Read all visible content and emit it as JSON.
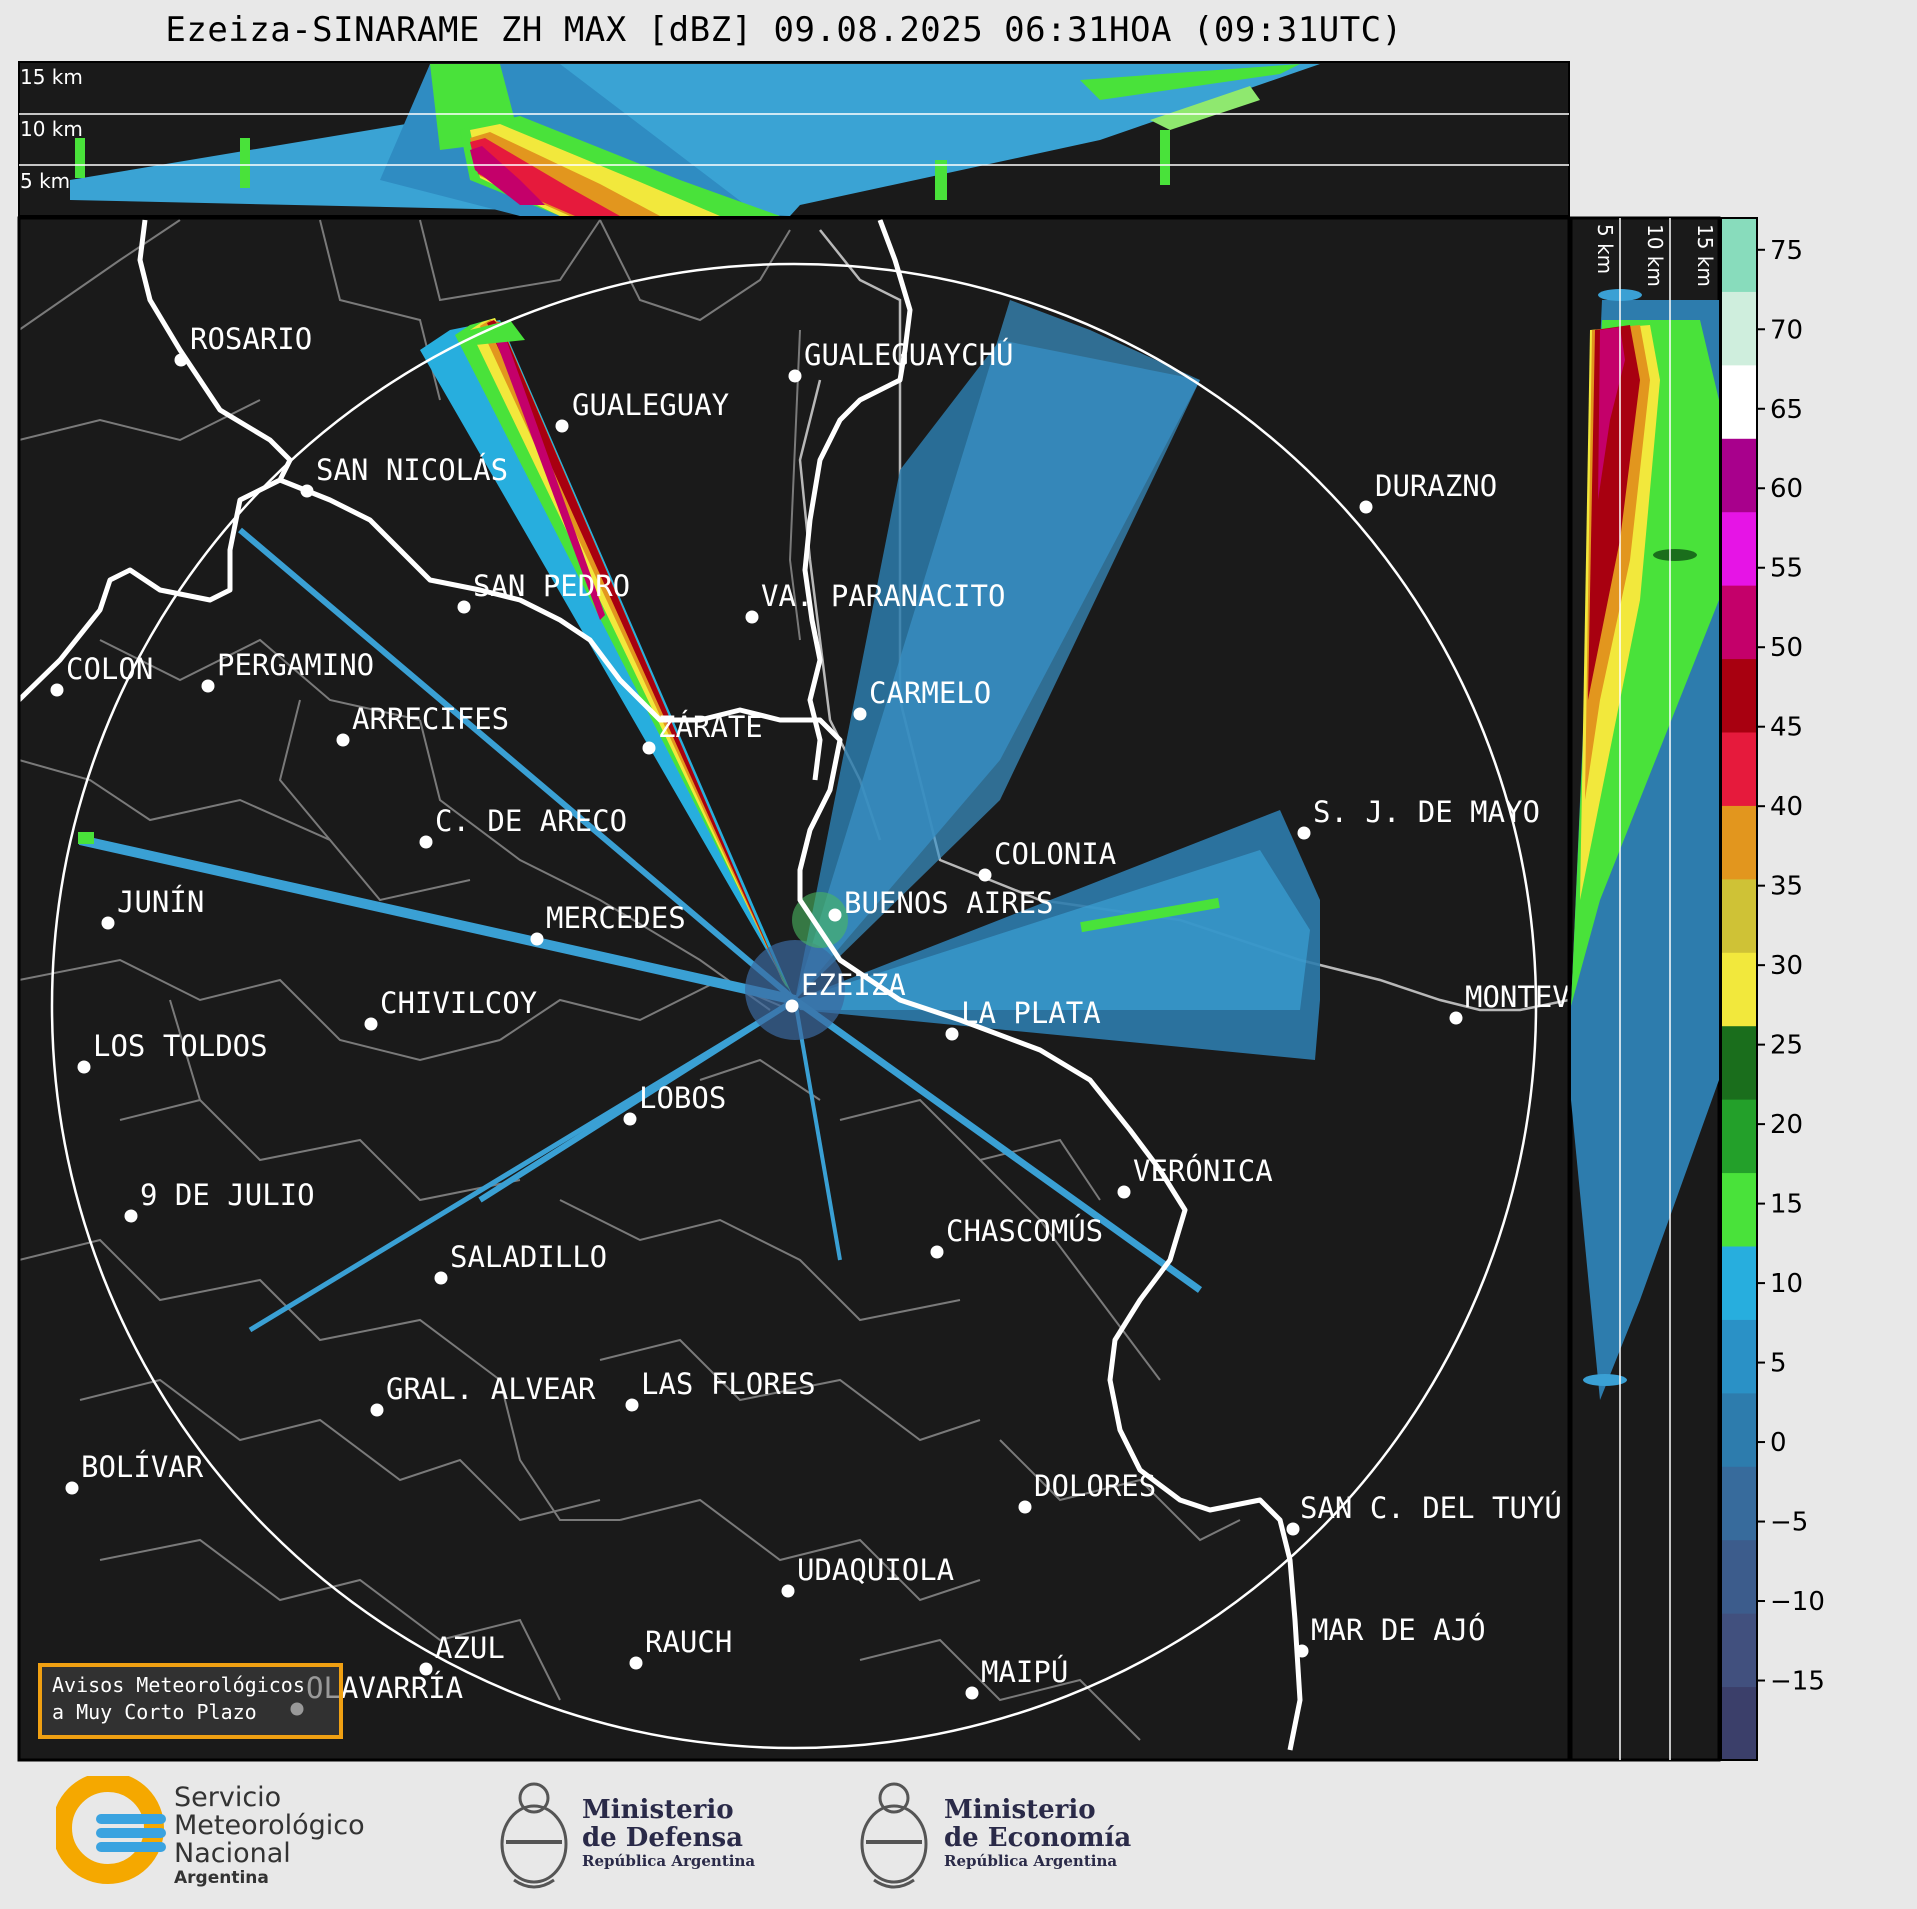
{
  "title": "Ezeiza-SINARAME ZH MAX [dBZ] 09.08.2025 06:31HOA (09:31UTC)",
  "top_panel": {
    "height_labels": [
      "15 km",
      "10 km",
      "5 km"
    ]
  },
  "side_panel": {
    "height_labels": [
      "5 km",
      "10 km",
      "15 km"
    ]
  },
  "colorbar": {
    "ticks": [
      "75",
      "70",
      "65",
      "60",
      "55",
      "50",
      "45",
      "40",
      "35",
      "30",
      "25",
      "20",
      "15",
      "10",
      "5",
      "0",
      "−5",
      "−10",
      "−15"
    ],
    "scale_colors": [
      "#3b3f6a",
      "#41507e",
      "#3c5c8c",
      "#376b9c",
      "#2d7cad",
      "#2a91c6",
      "#27aede",
      "#49e23a",
      "#23a02a",
      "#1a6e1c",
      "#f2e83c",
      "#cfc236",
      "#e2961e",
      "#e61a3c",
      "#a80010",
      "#c4006a",
      "#e614e6",
      "#a8008c",
      "#ffffff",
      "#cfeedd",
      "#88dcbc"
    ]
  },
  "cities": [
    {
      "name": "ROSARIO"
    },
    {
      "name": "GUALEGUAYCHÚ"
    },
    {
      "name": "GUALEGUAY"
    },
    {
      "name": "SAN NICOLÁS"
    },
    {
      "name": "DURAZNO"
    },
    {
      "name": "SAN PEDRO"
    },
    {
      "name": "VA. PARANACITO"
    },
    {
      "name": "COLON"
    },
    {
      "name": "PERGAMINO"
    },
    {
      "name": "CARMELO"
    },
    {
      "name": "ARRECIFES"
    },
    {
      "name": "ZÁRATE"
    },
    {
      "name": "S. J. DE MAYO"
    },
    {
      "name": "C. DE ARECO"
    },
    {
      "name": "COLONIA"
    },
    {
      "name": "JUNÍN"
    },
    {
      "name": "BUENOS AIRES"
    },
    {
      "name": "MERCEDES"
    },
    {
      "name": "MONTEVIDEO"
    },
    {
      "name": "EZEIZA"
    },
    {
      "name": "CHIVILCOY"
    },
    {
      "name": "LA PLATA"
    },
    {
      "name": "LOS TOLDOS"
    },
    {
      "name": "LOBOS"
    },
    {
      "name": "VERÓNICA"
    },
    {
      "name": "9 DE JULIO"
    },
    {
      "name": "CHASCOMÚS"
    },
    {
      "name": "SALADILLO"
    },
    {
      "name": "GRAL. ALVEAR"
    },
    {
      "name": "LAS FLORES"
    },
    {
      "name": "BOLÍVAR"
    },
    {
      "name": "DOLORES"
    },
    {
      "name": "SAN C. DEL TUYÚ"
    },
    {
      "name": "UDAQUIOLA"
    },
    {
      "name": "MAR DE AJÓ"
    },
    {
      "name": "RAUCH"
    },
    {
      "name": "AZUL"
    },
    {
      "name": "MAIPÚ"
    },
    {
      "name": "OLAVARRÍA"
    }
  ],
  "warning_box": {
    "line1": "Avisos Meteorológicos",
    "line2": "a Muy Corto Plazo"
  },
  "footer": {
    "smn": {
      "line1": "Servicio",
      "line2": "Meteorológico",
      "line3": "Nacional",
      "country": "Argentina"
    },
    "defensa": {
      "line1": "Ministerio",
      "line2": "de Defensa",
      "sub": "República Argentina"
    },
    "economia": {
      "line1": "Ministerio",
      "line2": "de Economía",
      "sub": "República Argentina"
    }
  }
}
